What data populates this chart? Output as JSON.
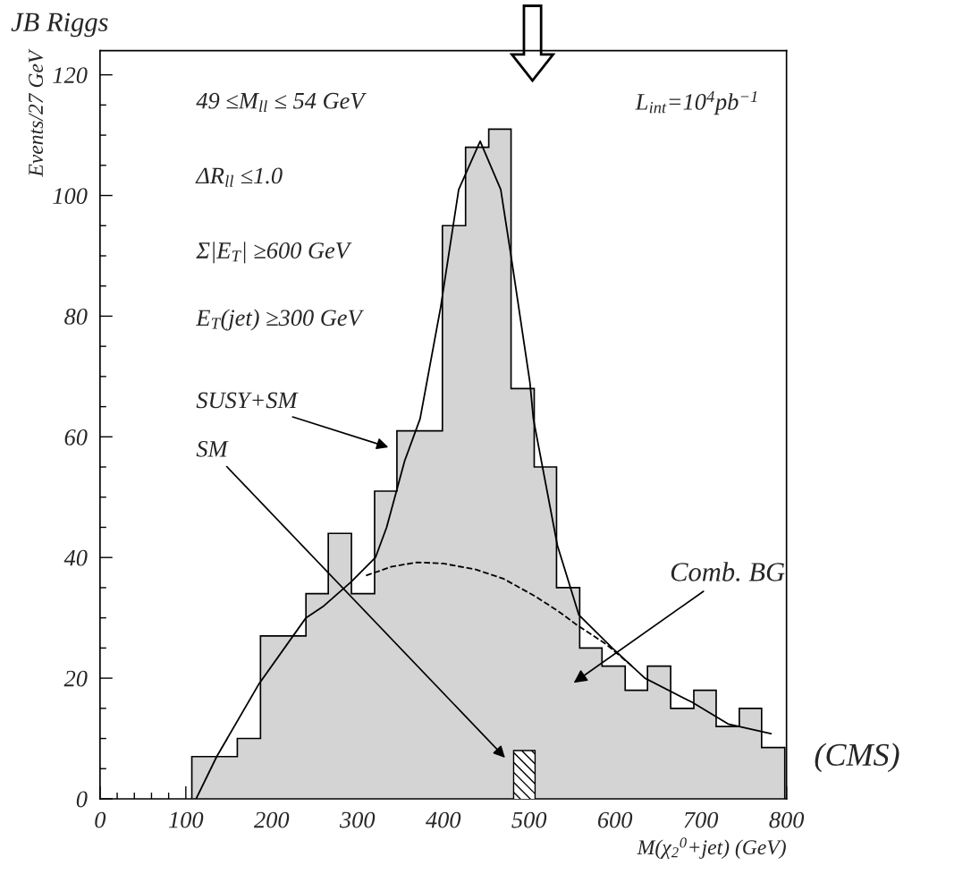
{
  "chart_data": {
    "type": "histogram",
    "xlabel": "M(χ$_{2}$$^{0}$+jet) (GeV)",
    "ylabel": "Events/27 GeV",
    "bins": [
      107,
      134,
      160,
      187,
      213,
      240,
      266,
      293,
      320,
      346,
      373,
      399,
      426,
      453,
      479,
      506,
      532,
      559,
      585,
      612,
      638,
      665,
      692,
      718,
      745,
      771,
      798
    ],
    "values": [
      7,
      7,
      10,
      27,
      27,
      34,
      44,
      34,
      51,
      61,
      61,
      95,
      108,
      111,
      68,
      55,
      35,
      25,
      22,
      18,
      22,
      15,
      18,
      12,
      15,
      8.5
    ],
    "color": "#d4d4d4",
    "series": [
      {
        "type": "histogram",
        "bins": [
          482,
          507
        ],
        "values": [
          8
        ],
        "color": "#000000"
      },
      {
        "type": "line",
        "color": "#000000",
        "line_style": "solid",
        "x": [
          112,
          136,
          185,
          240,
          261,
          293,
          321,
          334,
          355,
          373,
          397,
          418,
          443,
          467,
          480,
          501,
          505,
          533,
          558,
          597,
          635,
          690,
          732,
          782
        ],
        "values": [
          0,
          7,
          19,
          30,
          32,
          36,
          40,
          45,
          56,
          63,
          81.5,
          101,
          109,
          101,
          89,
          69,
          63,
          42,
          30.5,
          25,
          20,
          16,
          12.4,
          10.8
        ]
      },
      {
        "type": "line",
        "color": "#000000",
        "line_style": "dashed",
        "x": [
          310,
          340,
          370,
          400,
          438,
          470,
          508,
          535,
          554,
          590,
          620
        ],
        "values": [
          37,
          38.5,
          39.2,
          39,
          38,
          36.5,
          33.5,
          31,
          29,
          25.6,
          22
        ]
      }
    ],
    "xlim": [
      0,
      800
    ],
    "ylim": [
      0,
      124
    ],
    "xticks": [
      0,
      {
        "value": 20,
        "label": null
      },
      {
        "value": 40,
        "label": null
      },
      {
        "value": 60,
        "label": null
      },
      {
        "value": 80,
        "label": null
      },
      100,
      {
        "value": 120,
        "label": null
      },
      {
        "value": 140,
        "label": null
      },
      {
        "value": 160,
        "label": null
      },
      {
        "value": 180,
        "label": null
      },
      200,
      {
        "value": 220,
        "label": null
      },
      {
        "value": 240,
        "label": null
      },
      {
        "value": 260,
        "label": null
      },
      {
        "value": 280,
        "label": null
      },
      300,
      {
        "value": 320,
        "label": null
      },
      {
        "value": 340,
        "label": null
      },
      {
        "value": 360,
        "label": null
      },
      {
        "value": 380,
        "label": null
      },
      400,
      {
        "value": 420,
        "label": null
      },
      {
        "value": 440,
        "label": null
      },
      {
        "value": 460,
        "label": null
      },
      {
        "value": 480,
        "label": null
      },
      500,
      {
        "value": 520,
        "label": null
      },
      {
        "value": 540,
        "label": null
      },
      {
        "value": 560,
        "label": null
      },
      {
        "value": 580,
        "label": null
      },
      600,
      {
        "value": 620,
        "label": null
      },
      {
        "value": 640,
        "label": null
      },
      {
        "value": 660,
        "label": null
      },
      {
        "value": 680,
        "label": null
      },
      700,
      {
        "value": 720,
        "label": null
      },
      {
        "value": 740,
        "label": null
      },
      {
        "value": 760,
        "label": null
      },
      {
        "value": 780,
        "label": null
      },
      800
    ],
    "yticks": [
      0,
      {
        "value": 5,
        "label": null
      },
      {
        "value": 10,
        "label": null
      },
      {
        "value": 15,
        "label": null
      },
      20,
      {
        "value": 25,
        "label": null
      },
      {
        "value": 30,
        "label": null
      },
      {
        "value": 35,
        "label": null
      },
      40,
      {
        "value": 45,
        "label": null
      },
      {
        "value": 50,
        "label": null
      },
      {
        "value": 55,
        "label": null
      },
      60,
      {
        "value": 65,
        "label": null
      },
      {
        "value": 70,
        "label": null
      },
      {
        "value": 75,
        "label": null
      },
      80,
      {
        "value": 85,
        "label": null
      },
      {
        "value": 90,
        "label": null
      },
      {
        "value": 95,
        "label": null
      },
      100,
      {
        "value": 105,
        "label": null
      },
      {
        "value": 110,
        "label": null
      },
      {
        "value": 115,
        "label": null
      },
      120
    ],
    "grid": false,
    "legend": false,
    "annotations": [
      "49 ≤M$_{ll}$ ≤ 54 GeV",
      "ΔR$_{ll}$ ≤1.0",
      "Σ|E$_{T}$| ≥600 GeV",
      "E$_{T}$(jet) ≥300 GeV",
      "L$_{int}$=10$^{4}$pb$^{−1}$",
      "SUSY+SM",
      "SM",
      "Comb. BG",
      "(CMS)",
      "JB Riggs"
    ]
  }
}
